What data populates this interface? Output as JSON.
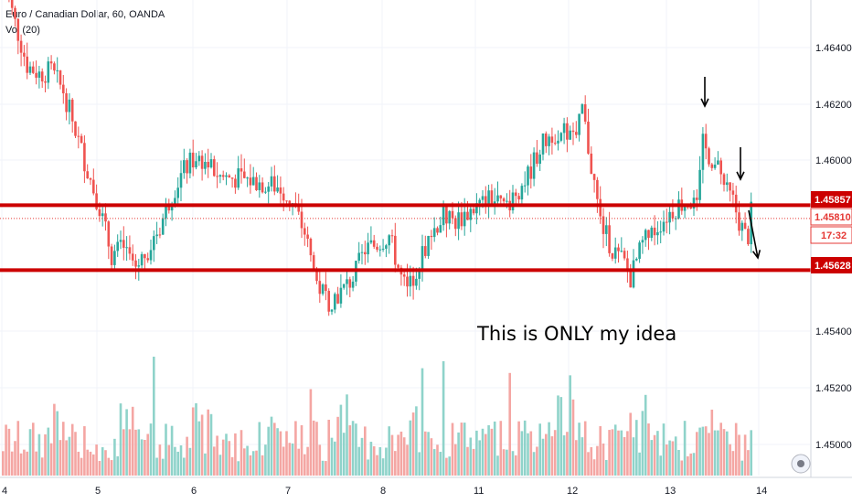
{
  "header": {
    "title": "Euro / Canadian Dollar, 60, OANDA",
    "volume_label": "Vol (20)"
  },
  "price_scale": {
    "ticks": [
      "1.46400",
      "1.46200",
      "1.46000",
      "1.45400",
      "1.45200",
      "1.45000"
    ],
    "tags": {
      "resistance": "1.45857",
      "last": "1.45810",
      "countdown": "17:32",
      "support": "1.45628"
    }
  },
  "time_axis": {
    "labels": [
      "4",
      "5",
      "6",
      "7",
      "8",
      "11",
      "12",
      "13",
      "14"
    ]
  },
  "annotation": {
    "text": "This is ONLY my idea"
  },
  "colors": {
    "up": "#26a69a",
    "down": "#ef5350",
    "up_volume": "#8fd3ca",
    "down_volume": "#f4a6a3",
    "level_line": "#cc0000",
    "last_price": "#e53935"
  },
  "chart_data": {
    "type": "candlestick",
    "symbol": "EURCAD",
    "interval": "60",
    "y_range": [
      1.449,
      1.4658
    ],
    "horizontal_levels": [
      1.45857,
      1.45628
    ],
    "last_price": 1.4581,
    "arrows": [
      "down",
      "down",
      "down"
    ],
    "price_path": [
      [
        0,
        1.4666
      ],
      [
        4,
        1.465
      ],
      [
        8,
        1.4635
      ],
      [
        12,
        1.4632
      ],
      [
        16,
        1.4633
      ],
      [
        20,
        1.4626
      ],
      [
        24,
        1.4612
      ],
      [
        28,
        1.4598
      ],
      [
        32,
        1.4585
      ],
      [
        36,
        1.4568
      ],
      [
        40,
        1.4571
      ],
      [
        44,
        1.4564
      ],
      [
        48,
        1.457
      ],
      [
        52,
        1.4578
      ],
      [
        56,
        1.459
      ],
      [
        60,
        1.4598
      ],
      [
        64,
        1.4603
      ],
      [
        68,
        1.46
      ],
      [
        72,
        1.4596
      ],
      [
        78,
        1.4595
      ],
      [
        84,
        1.4594
      ],
      [
        92,
        1.4592
      ],
      [
        96,
        1.4586
      ],
      [
        100,
        1.4576
      ],
      [
        104,
        1.4558
      ],
      [
        108,
        1.4552
      ],
      [
        112,
        1.4555
      ],
      [
        116,
        1.456
      ],
      [
        120,
        1.457
      ],
      [
        124,
        1.4572
      ],
      [
        128,
        1.4575
      ],
      [
        132,
        1.456
      ],
      [
        134,
        1.4555
      ],
      [
        138,
        1.4566
      ],
      [
        142,
        1.4576
      ],
      [
        146,
        1.4582
      ],
      [
        150,
        1.458
      ],
      [
        154,
        1.4583
      ],
      [
        158,
        1.4586
      ],
      [
        162,
        1.4588
      ],
      [
        166,
        1.4585
      ],
      [
        170,
        1.459
      ],
      [
        174,
        1.4596
      ],
      [
        178,
        1.4606
      ],
      [
        182,
        1.4611
      ],
      [
        186,
        1.4612
      ],
      [
        190,
        1.4608
      ],
      [
        192,
        1.462
      ],
      [
        194,
        1.4606
      ],
      [
        198,
        1.458
      ],
      [
        202,
        1.457
      ],
      [
        206,
        1.4565
      ],
      [
        208,
        1.456
      ],
      [
        212,
        1.4572
      ],
      [
        216,
        1.4577
      ],
      [
        220,
        1.4582
      ],
      [
        224,
        1.4586
      ],
      [
        228,
        1.4587
      ],
      [
        230,
        1.4584
      ],
      [
        232,
        1.4607
      ],
      [
        236,
        1.46
      ],
      [
        238,
        1.4596
      ],
      [
        240,
        1.459
      ],
      [
        242,
        1.4587
      ],
      [
        244,
        1.458
      ],
      [
        246,
        1.4575
      ],
      [
        247,
        1.4575
      ],
      [
        248,
        1.4583
      ]
    ],
    "volume_scale": [
      0,
      100
    ]
  }
}
